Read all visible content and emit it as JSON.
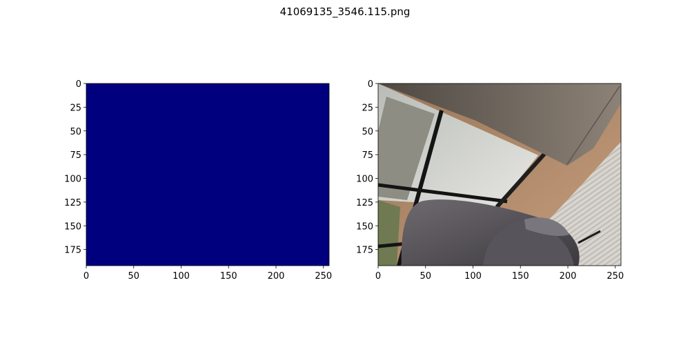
{
  "figure": {
    "title": "41069135_3546.115.png",
    "colors": {
      "mask_fill": "#00007f",
      "axis": "#000000",
      "background": "#ffffff"
    }
  },
  "chart_data": [
    {
      "type": "heatmap",
      "panel": "left",
      "description_content": "single-value label mask, uniform class 0 (viridis/jet low end, dark navy)",
      "image_width": 256,
      "image_height": 192,
      "xlim": [
        0,
        256
      ],
      "ylim": [
        192,
        0
      ],
      "xticks": [
        0,
        50,
        100,
        150,
        200,
        250
      ],
      "yticks": [
        0,
        25,
        50,
        75,
        100,
        125,
        150,
        175
      ],
      "values": [
        [
          0
        ]
      ],
      "colormap_color": "#00007f",
      "grid": false
    },
    {
      "type": "heatmap",
      "panel": "right",
      "description_content": "RGB photo: tilted view of a room corner with a large window (black frames), a grey velvet armchair in the lower-left, a beige ceiling/wall at the top, and a light textured rug on wooden floor at the right",
      "image_width": 256,
      "image_height": 192,
      "xlim": [
        0,
        256
      ],
      "ylim": [
        192,
        0
      ],
      "xticks": [
        0,
        50,
        100,
        150,
        200,
        250
      ],
      "yticks": [
        0,
        25,
        50,
        75,
        100,
        125,
        150,
        175
      ],
      "grid": false
    }
  ]
}
